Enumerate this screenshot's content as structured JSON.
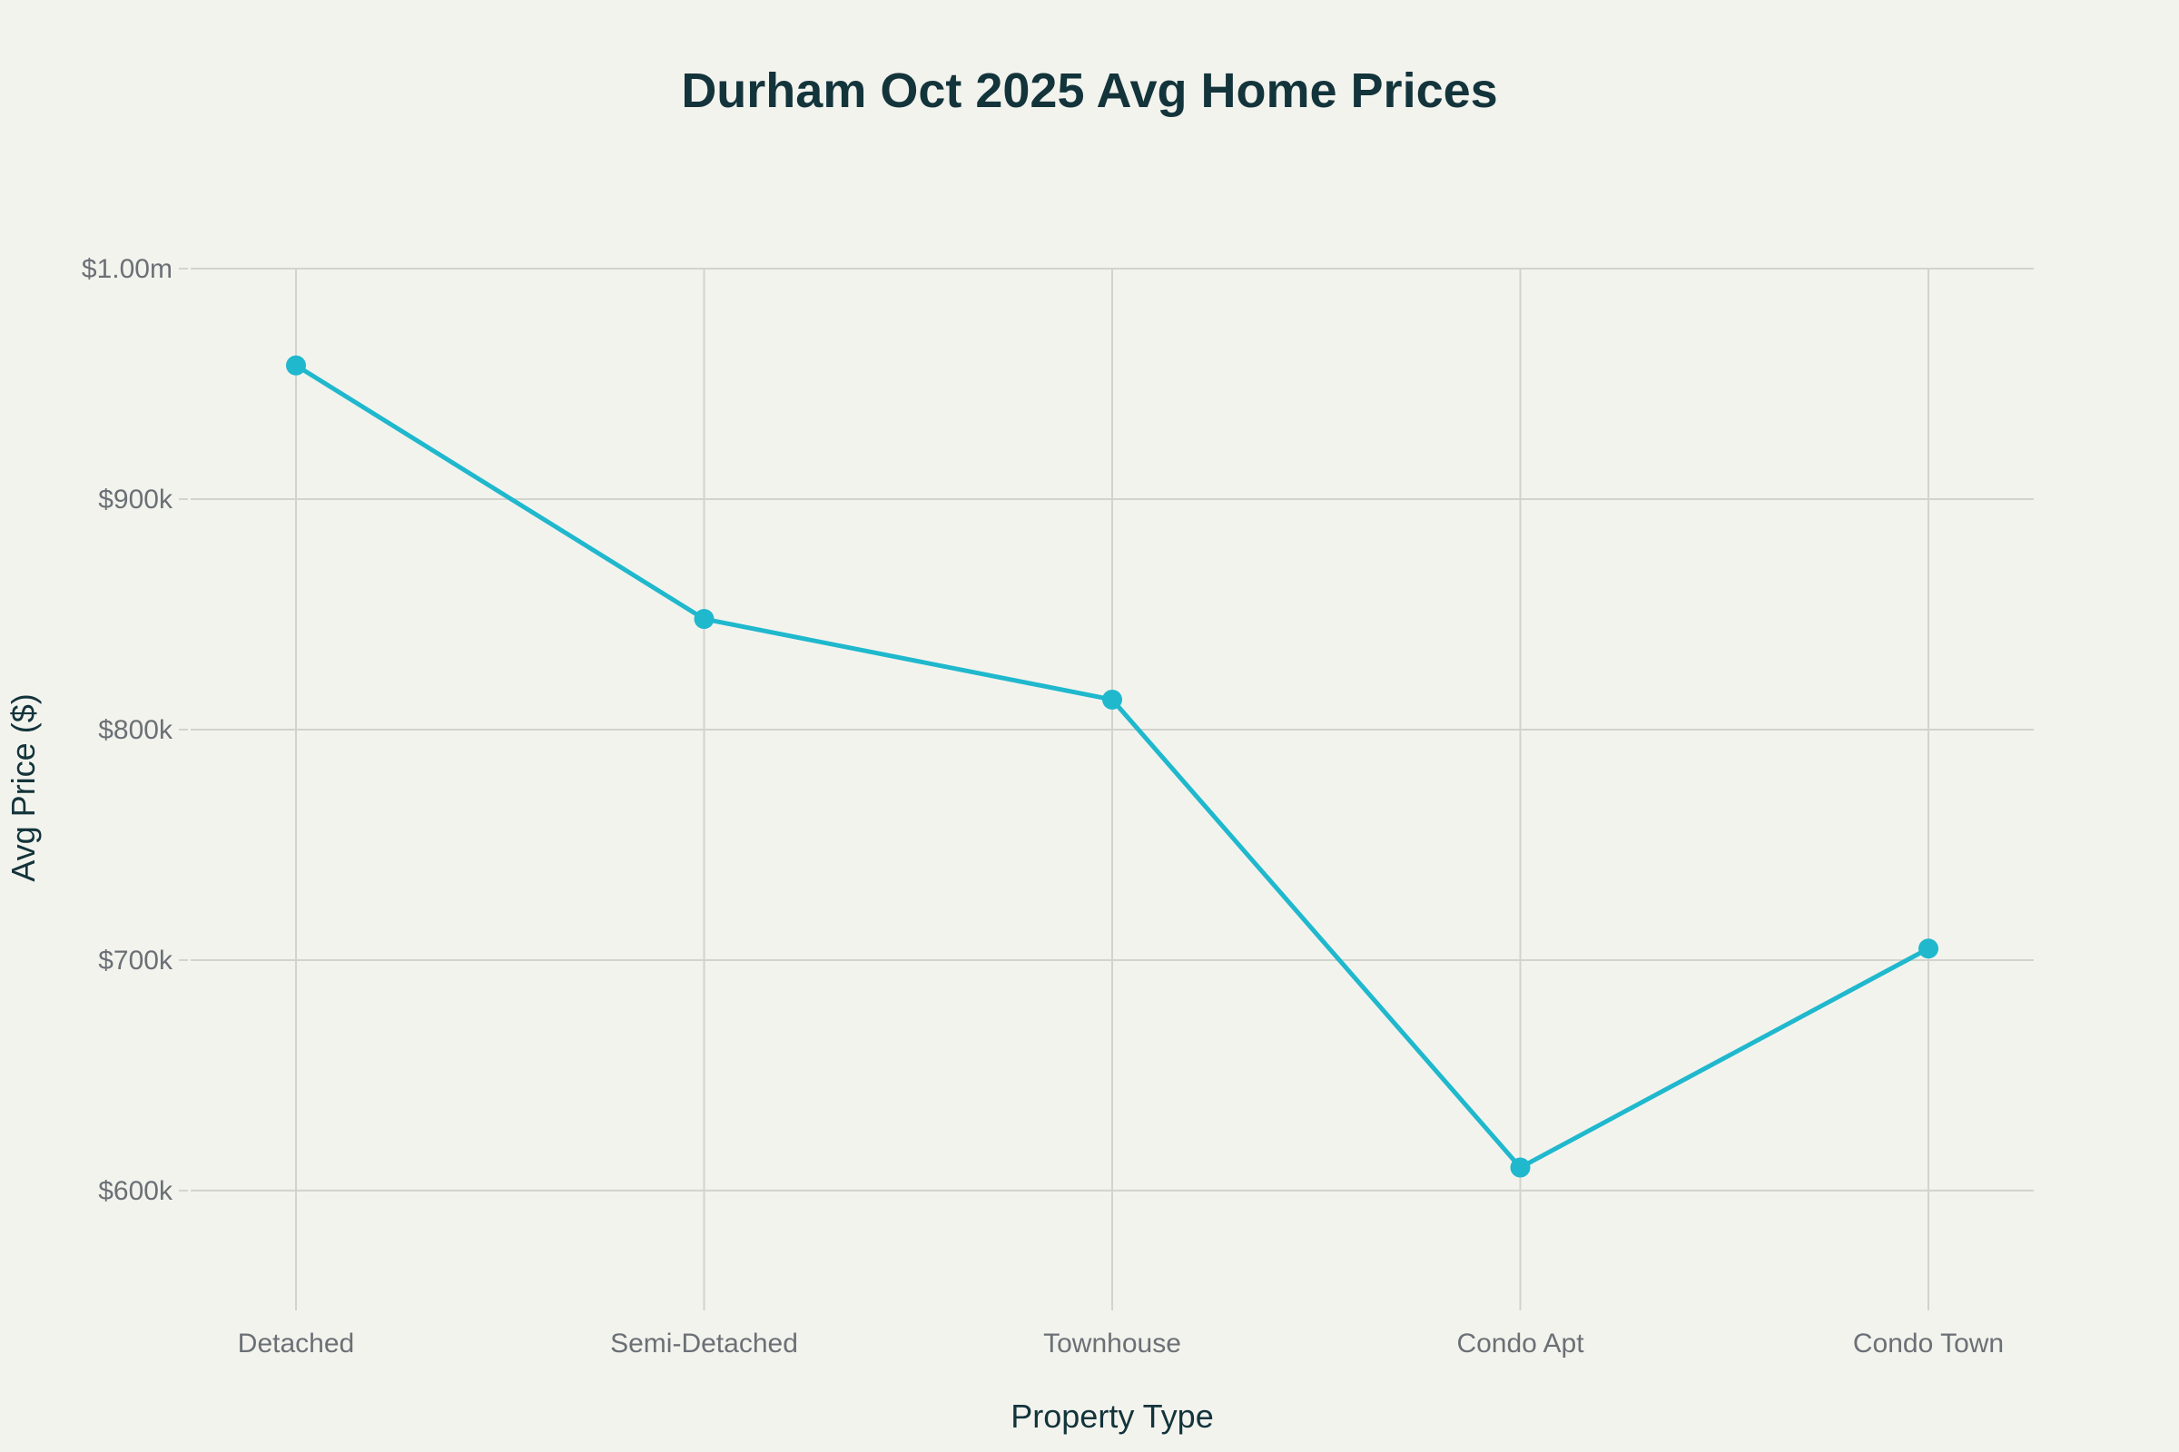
{
  "chart_data": {
    "type": "line",
    "title": "Durham Oct 2025 Avg Home Prices",
    "xlabel": "Property Type",
    "ylabel": "Avg Price ($)",
    "categories": [
      "Detached",
      "Semi-Detached",
      "Townhouse",
      "Condo Apt",
      "Condo Town"
    ],
    "series": [
      {
        "name": "Avg Price",
        "values": [
          958000,
          848000,
          813000,
          610000,
          705000
        ],
        "color": "#1fb8cd"
      }
    ],
    "ylim": [
      548000,
      1000000
    ],
    "yticks": [
      600000,
      700000,
      800000,
      900000,
      1000000
    ],
    "ytick_labels": [
      "$600k",
      "$700k",
      "$800k",
      "$900k",
      "$1.00m"
    ],
    "grid": true,
    "legend": "none"
  }
}
